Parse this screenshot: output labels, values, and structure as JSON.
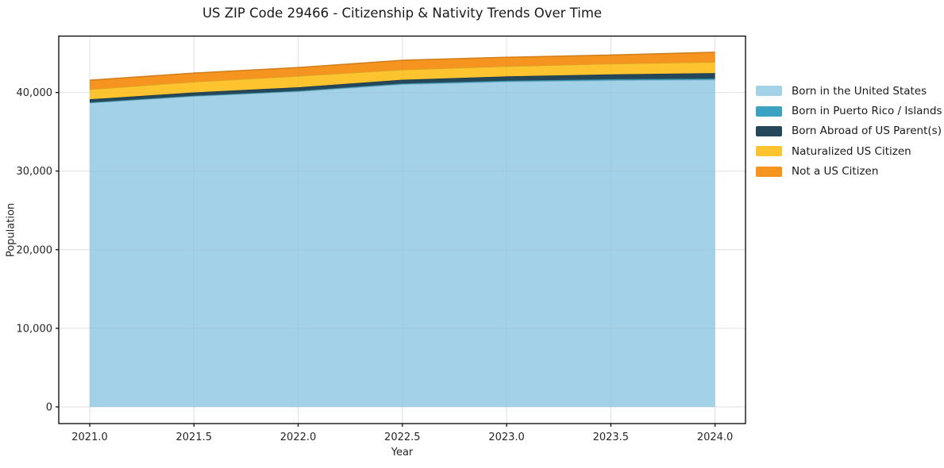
{
  "title": "US ZIP Code 29466 - Citizenship & Nativity Trends Over Time",
  "chart_data": {
    "type": "area",
    "stacked": true,
    "title": "US ZIP Code 29466 - Citizenship & Nativity Trends Over Time",
    "xlabel": "Year",
    "ylabel": "Population",
    "x": [
      2021.0,
      2021.5,
      2022.0,
      2022.5,
      2023.0,
      2023.5,
      2024.0
    ],
    "x_tick_labels": [
      "2021.0",
      "2021.5",
      "2022.0",
      "2022.5",
      "2023.0",
      "2023.5",
      "2024.0"
    ],
    "y_ticks": [
      0,
      10000,
      20000,
      30000,
      40000
    ],
    "y_tick_labels": [
      "0",
      "10,000",
      "20,000",
      "30,000",
      "40,000"
    ],
    "xlim": [
      2020.85,
      2024.15
    ],
    "ylim": [
      -2250,
      47250
    ],
    "grid": true,
    "legend_position": "outside-center-right",
    "series": [
      {
        "name": "Born in the United States",
        "color": "#a2d1e8",
        "values": [
          38690,
          39530,
          40130,
          41040,
          41380,
          41550,
          41620
        ]
      },
      {
        "name": "Born in Puerto Rico / Islands",
        "color": "#3ba3c1",
        "values": [
          50,
          60,
          80,
          100,
          120,
          140,
          150
        ]
      },
      {
        "name": "Born Abroad of US Parent(s)",
        "color": "#25475a",
        "values": [
          400,
          420,
          450,
          480,
          550,
          620,
          700
        ]
      },
      {
        "name": "Naturalized US Citizen",
        "color": "#fdc42f",
        "values": [
          1250,
          1350,
          1430,
          1280,
          1280,
          1350,
          1400
        ]
      },
      {
        "name": "Not a US Citizen",
        "color": "#f5941f",
        "values": [
          1170,
          1110,
          1080,
          1200,
          1150,
          1100,
          1250
        ]
      }
    ],
    "stack_totals": [
      41560,
      42470,
      43170,
      44100,
      44480,
      44760,
      45120
    ]
  },
  "style_colors": {
    "grid": "#e8e8e8",
    "spine": "#000000",
    "tick_text": "#262626"
  }
}
